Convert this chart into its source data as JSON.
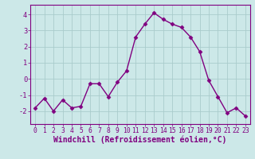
{
  "x": [
    0,
    1,
    2,
    3,
    4,
    5,
    6,
    7,
    8,
    9,
    10,
    11,
    12,
    13,
    14,
    15,
    16,
    17,
    18,
    19,
    20,
    21,
    22,
    23
  ],
  "y": [
    -1.8,
    -1.2,
    -2.0,
    -1.3,
    -1.8,
    -1.7,
    -0.3,
    -0.3,
    -1.1,
    -0.2,
    0.5,
    2.6,
    3.4,
    4.1,
    3.7,
    3.4,
    3.2,
    2.6,
    1.7,
    -0.1,
    -1.1,
    -2.1,
    -1.8,
    -2.3
  ],
  "line_color": "#800080",
  "marker": "D",
  "marker_size": 2.5,
  "bg_color": "#cce8e8",
  "grid_color": "#aacccc",
  "xlabel": "Windchill (Refroidissement éolien,°C)",
  "xlabel_color": "#800080",
  "xlim": [
    -0.5,
    23.5
  ],
  "ylim": [
    -2.8,
    4.6
  ],
  "yticks": [
    -2,
    -1,
    0,
    1,
    2,
    3,
    4
  ],
  "xticks": [
    0,
    1,
    2,
    3,
    4,
    5,
    6,
    7,
    8,
    9,
    10,
    11,
    12,
    13,
    14,
    15,
    16,
    17,
    18,
    19,
    20,
    21,
    22,
    23
  ],
  "tick_color": "#800080",
  "tick_fontsize": 5.8,
  "xlabel_fontsize": 7.0,
  "spine_color": "#800080",
  "linewidth": 1.0
}
